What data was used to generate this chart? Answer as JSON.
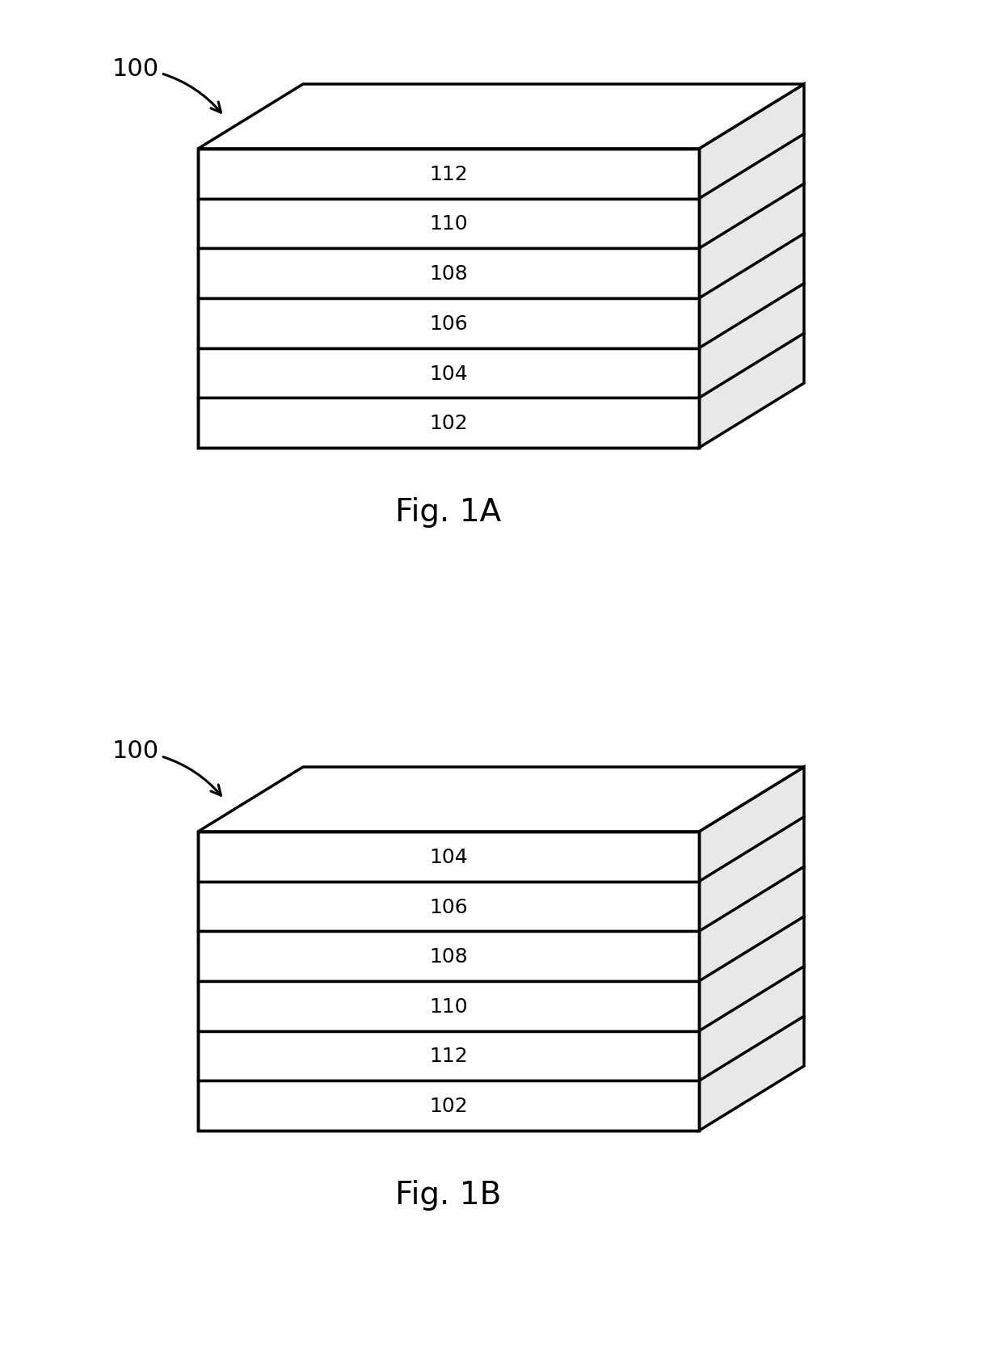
{
  "fig1a": {
    "label": "Fig. 1A",
    "ref_label": "100",
    "layers": [
      "112",
      "110",
      "108",
      "106",
      "104",
      "102"
    ]
  },
  "fig1b": {
    "label": "Fig. 1B",
    "ref_label": "100",
    "layers": [
      "104",
      "106",
      "108",
      "110",
      "112",
      "102"
    ]
  },
  "box_color": "#ffffff",
  "edge_color": "#000000",
  "top_face_color": "#ffffff",
  "side_face_color": "#e8e8e8",
  "line_width": 2.5,
  "text_color": "#000000",
  "label_fontsize": 28,
  "ref_fontsize": 22,
  "layer_label_fontsize": 18,
  "background_color": "#ffffff",
  "fig_width": 12.4,
  "fig_height": 16.9
}
